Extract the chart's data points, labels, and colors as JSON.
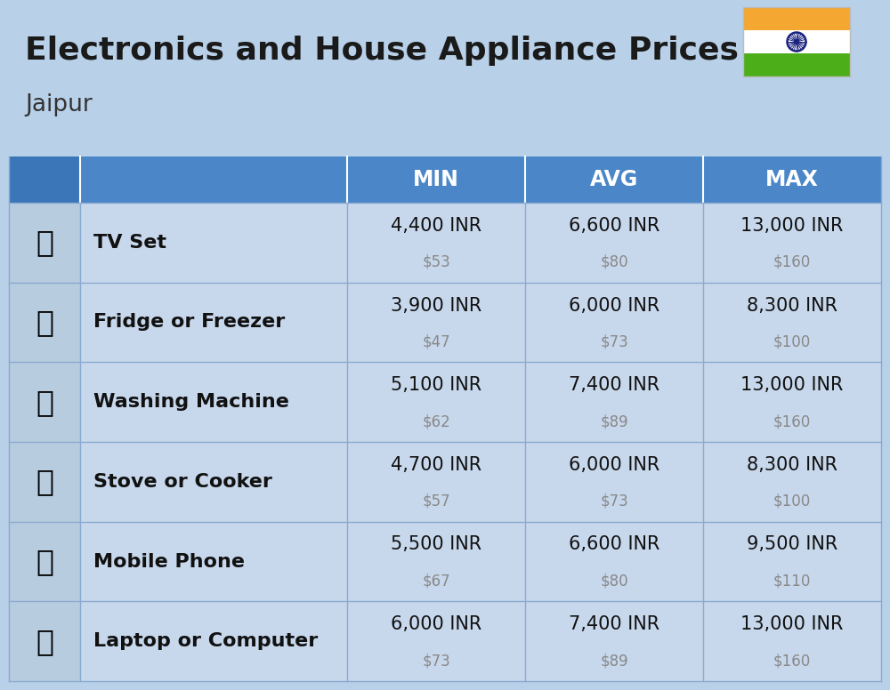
{
  "title": "Electronics and House Appliance Prices",
  "subtitle": "Jaipur",
  "background_color": "#b8d0e8",
  "header_color": "#4a86c8",
  "header_text_color": "#ffffff",
  "row_bg_light": "#c8d8ec",
  "row_bg_icon": "#b8cce0",
  "divider_color": "#8aaad0",
  "col_headers": [
    "MIN",
    "AVG",
    "MAX"
  ],
  "items": [
    {
      "name": "TV Set",
      "min_inr": "4,400 INR",
      "min_usd": "$53",
      "avg_inr": "6,600 INR",
      "avg_usd": "$80",
      "max_inr": "13,000 INR",
      "max_usd": "$160"
    },
    {
      "name": "Fridge or Freezer",
      "min_inr": "3,900 INR",
      "min_usd": "$47",
      "avg_inr": "6,000 INR",
      "avg_usd": "$73",
      "max_inr": "8,300 INR",
      "max_usd": "$100"
    },
    {
      "name": "Washing Machine",
      "min_inr": "5,100 INR",
      "min_usd": "$62",
      "avg_inr": "7,400 INR",
      "avg_usd": "$89",
      "max_inr": "13,000 INR",
      "max_usd": "$160"
    },
    {
      "name": "Stove or Cooker",
      "min_inr": "4,700 INR",
      "min_usd": "$57",
      "avg_inr": "6,000 INR",
      "avg_usd": "$73",
      "max_inr": "8,300 INR",
      "max_usd": "$100"
    },
    {
      "name": "Mobile Phone",
      "min_inr": "5,500 INR",
      "min_usd": "$67",
      "avg_inr": "6,600 INR",
      "avg_usd": "$80",
      "max_inr": "9,500 INR",
      "max_usd": "$110"
    },
    {
      "name": "Laptop or Computer",
      "min_inr": "6,000 INR",
      "min_usd": "$73",
      "avg_inr": "7,400 INR",
      "avg_usd": "$89",
      "max_inr": "13,000 INR",
      "max_usd": "$160"
    }
  ],
  "title_fontsize": 26,
  "subtitle_fontsize": 19,
  "header_fontsize": 17,
  "item_name_fontsize": 16,
  "value_fontsize": 15,
  "usd_fontsize": 12,
  "flag_orange": "#F4A832",
  "flag_white": "#FFFFFF",
  "flag_green": "#4CAF1A",
  "flag_chakra": "#1A237E"
}
